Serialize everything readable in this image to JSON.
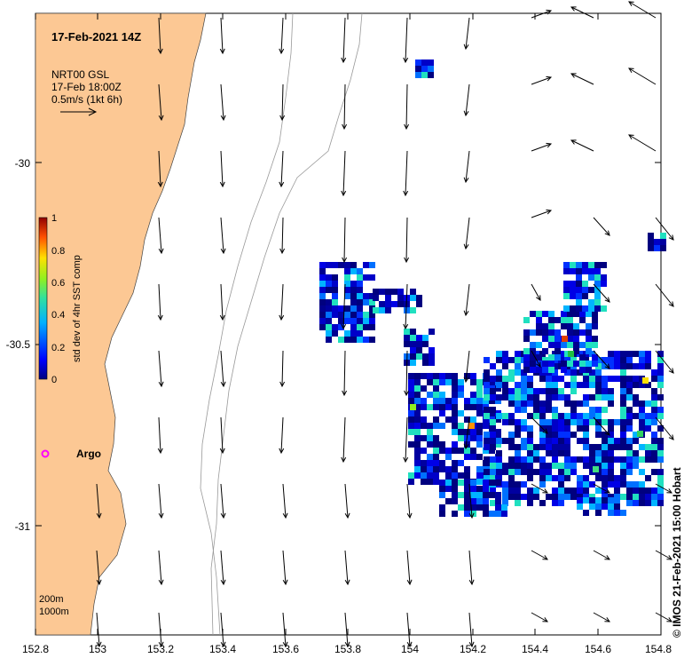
{
  "map": {
    "title": "17-Feb-2021 14Z",
    "legend_lines": [
      "NRT00 GSL",
      "17-Feb 18:00Z",
      "0.5m/s (1kt 6h)"
    ],
    "colorbar": {
      "label": "std dev of 4hr SST comp",
      "ticks": [
        "1",
        "0.8",
        "0.6",
        "0.4",
        "0.2",
        "0"
      ]
    },
    "argo_label": "Argo",
    "depth_labels": [
      "200m",
      "1000m"
    ],
    "credit": "© IMOS 21-Feb-2021 15:00 Hobart",
    "x_ticks": [
      "152.8",
      "153",
      "153.2",
      "153.4",
      "153.6",
      "153.8",
      "154",
      "154.2",
      "154.4",
      "154.6",
      "154.8"
    ],
    "y_ticks": [
      "-30",
      "-30.5",
      "-31"
    ],
    "colors": {
      "land": "#fcc894",
      "water": "#ffffff",
      "pixel_dark": "#00007f",
      "pixel_blue": "#0000d0",
      "argo": "#ff00ff"
    }
  }
}
